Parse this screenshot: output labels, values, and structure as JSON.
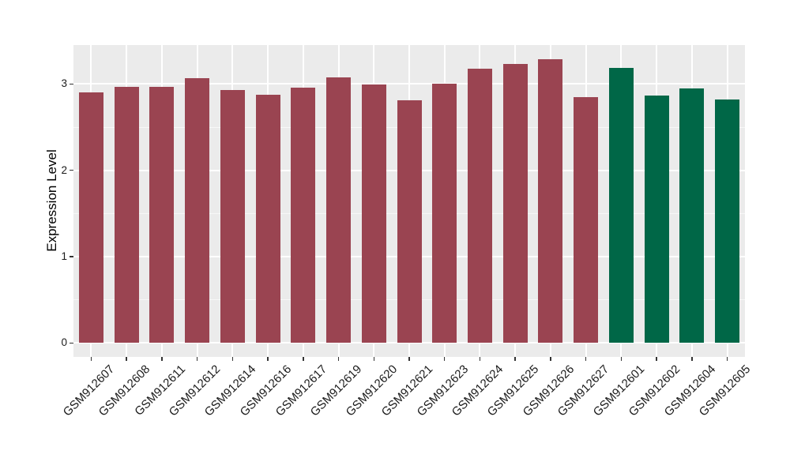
{
  "chart_data": {
    "type": "bar",
    "title": "",
    "xlabel": "",
    "ylabel": "Expression Level",
    "categories": [
      "GSM912607",
      "GSM912608",
      "GSM912611",
      "GSM912612",
      "GSM912614",
      "GSM912616",
      "GSM912617",
      "GSM912619",
      "GSM912620",
      "GSM912621",
      "GSM912623",
      "GSM912624",
      "GSM912625",
      "GSM912626",
      "GSM912627",
      "GSM912601",
      "GSM912602",
      "GSM912604",
      "GSM912605"
    ],
    "values": [
      2.9,
      2.97,
      2.97,
      3.07,
      2.93,
      2.88,
      2.96,
      3.08,
      2.99,
      2.81,
      3.0,
      3.18,
      3.23,
      3.29,
      2.85,
      3.19,
      2.87,
      2.95,
      2.82
    ],
    "bar_colors": [
      "#9A4451",
      "#9A4451",
      "#9A4451",
      "#9A4451",
      "#9A4451",
      "#9A4451",
      "#9A4451",
      "#9A4451",
      "#9A4451",
      "#9A4451",
      "#9A4451",
      "#9A4451",
      "#9A4451",
      "#9A4451",
      "#9A4451",
      "#006747",
      "#006747",
      "#006747",
      "#006747"
    ],
    "color_groups": {
      "maroon": "#9A4451",
      "green": "#006747"
    },
    "yticks": [
      0,
      1,
      2,
      3
    ],
    "yticks_minor": [
      0.5,
      1.5,
      2.5
    ],
    "ylim": [
      -0.16,
      3.45
    ],
    "grid": true,
    "legend": "none",
    "panel_bg": "#EBEBEB",
    "grid_color": "#FFFFFF",
    "axis_text_color": "#1A1A1A"
  }
}
